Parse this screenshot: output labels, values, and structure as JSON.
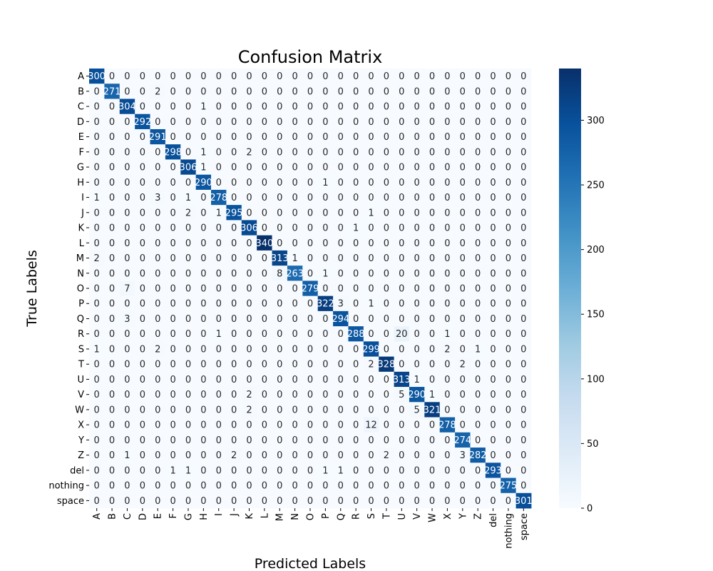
{
  "chart_data": {
    "type": "heatmap",
    "title": "Confusion Matrix",
    "xlabel": "Predicted Labels",
    "ylabel": "True Labels",
    "labels": [
      "A",
      "B",
      "C",
      "D",
      "E",
      "F",
      "G",
      "H",
      "I",
      "J",
      "K",
      "L",
      "M",
      "N",
      "O",
      "P",
      "Q",
      "R",
      "S",
      "T",
      "U",
      "V",
      "W",
      "X",
      "Y",
      "Z",
      "del",
      "nothing",
      "space"
    ],
    "matrix": [
      [
        300,
        0,
        0,
        0,
        0,
        0,
        0,
        0,
        0,
        0,
        0,
        0,
        0,
        0,
        0,
        0,
        0,
        0,
        0,
        0,
        0,
        0,
        0,
        0,
        0,
        0,
        0,
        0,
        0
      ],
      [
        0,
        271,
        0,
        0,
        2,
        0,
        0,
        0,
        0,
        0,
        0,
        0,
        0,
        0,
        0,
        0,
        0,
        0,
        0,
        0,
        0,
        0,
        0,
        0,
        0,
        0,
        0,
        0,
        0
      ],
      [
        0,
        0,
        304,
        0,
        0,
        0,
        0,
        1,
        0,
        0,
        0,
        0,
        0,
        0,
        0,
        0,
        0,
        0,
        0,
        0,
        0,
        0,
        0,
        0,
        0,
        0,
        0,
        0,
        0
      ],
      [
        0,
        0,
        0,
        292,
        0,
        0,
        0,
        0,
        0,
        0,
        0,
        0,
        0,
        0,
        0,
        0,
        0,
        0,
        0,
        0,
        0,
        0,
        0,
        0,
        0,
        0,
        0,
        0,
        0
      ],
      [
        0,
        0,
        0,
        0,
        291,
        0,
        0,
        0,
        0,
        0,
        0,
        0,
        0,
        0,
        0,
        0,
        0,
        0,
        0,
        0,
        0,
        0,
        0,
        0,
        0,
        0,
        0,
        0,
        0
      ],
      [
        0,
        0,
        0,
        0,
        0,
        298,
        0,
        1,
        0,
        0,
        2,
        0,
        0,
        0,
        0,
        0,
        0,
        0,
        0,
        0,
        0,
        0,
        0,
        0,
        0,
        0,
        0,
        0,
        0
      ],
      [
        0,
        0,
        0,
        0,
        0,
        0,
        306,
        1,
        0,
        0,
        0,
        0,
        0,
        0,
        0,
        0,
        0,
        0,
        0,
        0,
        0,
        0,
        0,
        0,
        0,
        0,
        0,
        0,
        0
      ],
      [
        0,
        0,
        0,
        0,
        0,
        0,
        0,
        290,
        0,
        0,
        0,
        0,
        0,
        0,
        0,
        1,
        0,
        0,
        0,
        0,
        0,
        0,
        0,
        0,
        0,
        0,
        0,
        0,
        0
      ],
      [
        1,
        0,
        0,
        0,
        3,
        0,
        1,
        0,
        278,
        0,
        0,
        0,
        0,
        0,
        0,
        0,
        0,
        0,
        0,
        0,
        0,
        0,
        0,
        0,
        0,
        0,
        0,
        0,
        0
      ],
      [
        0,
        0,
        0,
        0,
        0,
        0,
        2,
        0,
        1,
        295,
        0,
        0,
        0,
        0,
        0,
        0,
        0,
        0,
        1,
        0,
        0,
        0,
        0,
        0,
        0,
        0,
        0,
        0,
        0
      ],
      [
        0,
        0,
        0,
        0,
        0,
        0,
        0,
        0,
        0,
        0,
        306,
        0,
        0,
        0,
        0,
        0,
        0,
        1,
        0,
        0,
        0,
        0,
        0,
        0,
        0,
        0,
        0,
        0,
        0
      ],
      [
        0,
        0,
        0,
        0,
        0,
        0,
        0,
        0,
        0,
        0,
        0,
        340,
        0,
        0,
        0,
        0,
        0,
        0,
        0,
        0,
        0,
        0,
        0,
        0,
        0,
        0,
        0,
        0,
        0
      ],
      [
        2,
        0,
        0,
        0,
        0,
        0,
        0,
        0,
        0,
        0,
        0,
        0,
        313,
        1,
        0,
        0,
        0,
        0,
        0,
        0,
        0,
        0,
        0,
        0,
        0,
        0,
        0,
        0,
        0
      ],
      [
        0,
        0,
        0,
        0,
        0,
        0,
        0,
        0,
        0,
        0,
        0,
        0,
        8,
        263,
        0,
        1,
        0,
        0,
        0,
        0,
        0,
        0,
        0,
        0,
        0,
        0,
        0,
        0,
        0
      ],
      [
        0,
        0,
        7,
        0,
        0,
        0,
        0,
        0,
        0,
        0,
        0,
        0,
        0,
        0,
        279,
        0,
        0,
        0,
        0,
        0,
        0,
        0,
        0,
        0,
        0,
        0,
        0,
        0,
        0
      ],
      [
        0,
        0,
        0,
        0,
        0,
        0,
        0,
        0,
        0,
        0,
        0,
        0,
        0,
        0,
        0,
        322,
        3,
        0,
        1,
        0,
        0,
        0,
        0,
        0,
        0,
        0,
        0,
        0,
        0
      ],
      [
        0,
        0,
        3,
        0,
        0,
        0,
        0,
        0,
        0,
        0,
        0,
        0,
        0,
        0,
        0,
        0,
        294,
        0,
        0,
        0,
        0,
        0,
        0,
        0,
        0,
        0,
        0,
        0,
        0
      ],
      [
        0,
        0,
        0,
        0,
        0,
        0,
        0,
        0,
        1,
        0,
        0,
        0,
        0,
        0,
        0,
        0,
        0,
        288,
        0,
        0,
        20,
        0,
        0,
        1,
        0,
        0,
        0,
        0,
        0
      ],
      [
        1,
        0,
        0,
        0,
        2,
        0,
        0,
        0,
        0,
        0,
        0,
        0,
        0,
        0,
        0,
        0,
        0,
        0,
        299,
        0,
        0,
        0,
        0,
        2,
        0,
        1,
        0,
        0,
        0
      ],
      [
        0,
        0,
        0,
        0,
        0,
        0,
        0,
        0,
        0,
        0,
        0,
        0,
        0,
        0,
        0,
        0,
        0,
        0,
        2,
        328,
        0,
        0,
        0,
        0,
        2,
        0,
        0,
        0,
        0
      ],
      [
        0,
        0,
        0,
        0,
        0,
        0,
        0,
        0,
        0,
        0,
        0,
        0,
        0,
        0,
        0,
        0,
        0,
        0,
        0,
        0,
        313,
        1,
        0,
        0,
        0,
        0,
        0,
        0,
        0
      ],
      [
        0,
        0,
        0,
        0,
        0,
        0,
        0,
        0,
        0,
        0,
        2,
        0,
        0,
        0,
        0,
        0,
        0,
        0,
        0,
        0,
        5,
        290,
        1,
        0,
        0,
        0,
        0,
        0,
        0
      ],
      [
        0,
        0,
        0,
        0,
        0,
        0,
        0,
        0,
        0,
        0,
        2,
        0,
        0,
        0,
        0,
        0,
        0,
        0,
        0,
        0,
        0,
        5,
        321,
        0,
        0,
        0,
        0,
        0,
        0
      ],
      [
        0,
        0,
        0,
        0,
        0,
        0,
        0,
        0,
        0,
        0,
        0,
        0,
        0,
        0,
        0,
        0,
        0,
        0,
        12,
        0,
        0,
        0,
        0,
        278,
        0,
        0,
        0,
        0,
        0
      ],
      [
        0,
        0,
        0,
        0,
        0,
        0,
        0,
        0,
        0,
        0,
        0,
        0,
        0,
        0,
        0,
        0,
        0,
        0,
        0,
        0,
        0,
        0,
        0,
        0,
        274,
        0,
        0,
        0,
        0
      ],
      [
        0,
        0,
        1,
        0,
        0,
        0,
        0,
        0,
        0,
        2,
        0,
        0,
        0,
        0,
        0,
        0,
        0,
        0,
        0,
        2,
        0,
        0,
        0,
        0,
        3,
        282,
        0,
        0,
        0
      ],
      [
        0,
        0,
        0,
        0,
        0,
        1,
        1,
        0,
        0,
        0,
        0,
        0,
        0,
        0,
        0,
        1,
        1,
        0,
        0,
        0,
        0,
        0,
        0,
        0,
        0,
        0,
        293,
        0,
        0
      ],
      [
        0,
        0,
        0,
        0,
        0,
        0,
        0,
        0,
        0,
        0,
        0,
        0,
        0,
        0,
        0,
        0,
        0,
        0,
        0,
        0,
        0,
        0,
        0,
        0,
        0,
        0,
        0,
        275,
        0
      ],
      [
        0,
        0,
        0,
        0,
        0,
        0,
        0,
        0,
        0,
        0,
        0,
        0,
        0,
        0,
        0,
        0,
        0,
        0,
        0,
        0,
        0,
        0,
        0,
        0,
        0,
        0,
        0,
        0,
        301
      ]
    ],
    "colorbar": {
      "min": 0,
      "max": 340,
      "ticks": [
        0,
        50,
        100,
        150,
        200,
        250,
        300
      ],
      "colormap": "Blues"
    }
  }
}
